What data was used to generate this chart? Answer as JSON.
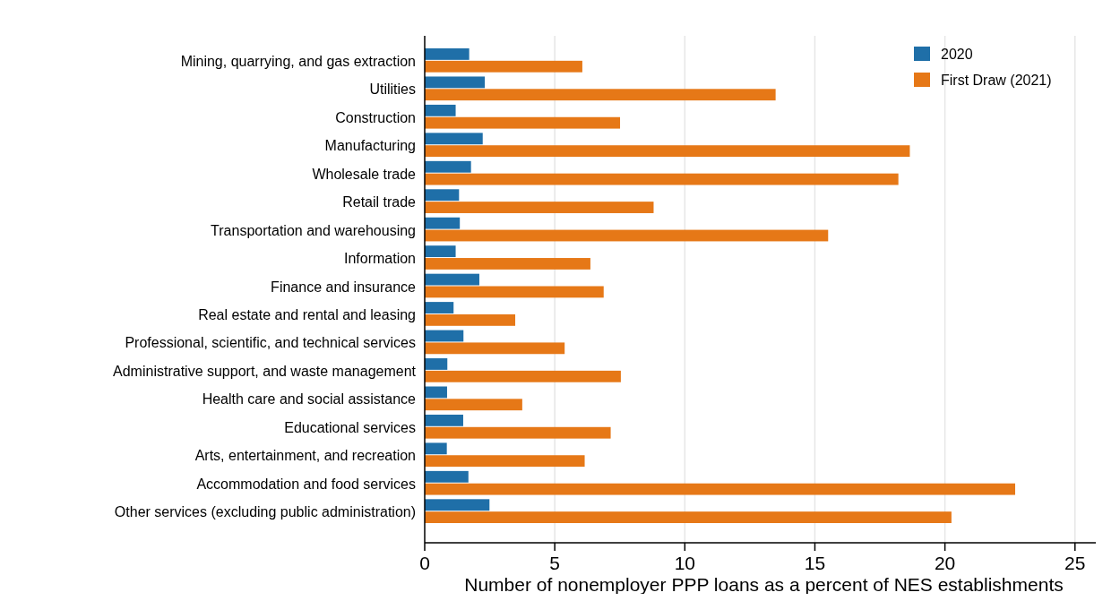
{
  "chart_data": {
    "type": "bar",
    "orientation": "horizontal",
    "xlabel": "Number of nonemployer PPP loans as a percent of NES establishments",
    "categories": [
      "Mining, quarrying, and gas extraction",
      "Utilities",
      "Construction",
      "Manufacturing",
      "Wholesale trade",
      "Retail trade",
      "Transportation and warehousing",
      "Information",
      "Finance and insurance",
      "Real estate and rental and leasing",
      "Professional, scientific, and technical services",
      "Administrative support, and waste management",
      "Health care and social assistance",
      "Educational services",
      "Arts, entertainment, and recreation",
      "Accommodation and food services",
      "Other services (excluding public administration)"
    ],
    "series": [
      {
        "name": "2020",
        "color": "#1f6fa8",
        "values": [
          1.71,
          2.31,
          1.19,
          2.23,
          1.78,
          1.32,
          1.35,
          1.19,
          2.1,
          1.11,
          1.49,
          0.87,
          0.86,
          1.48,
          0.85,
          1.68,
          2.49
        ]
      },
      {
        "name": "First Draw (2021)",
        "color": "#e67817",
        "values": [
          6.06,
          13.49,
          7.51,
          18.65,
          18.21,
          8.8,
          15.51,
          6.37,
          6.88,
          3.48,
          5.38,
          7.54,
          3.75,
          7.15,
          6.15,
          22.7,
          20.25
        ]
      }
    ],
    "xlim": [
      0,
      25.8
    ],
    "xticks": [
      0,
      5,
      10,
      15,
      20,
      25
    ],
    "grid": "x",
    "legend": "top right"
  }
}
